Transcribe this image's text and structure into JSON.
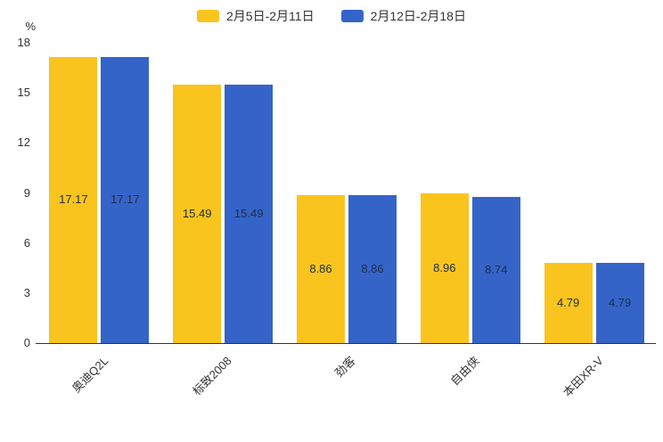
{
  "chart_data": {
    "type": "bar",
    "title": "",
    "xlabel": "",
    "ylabel": "%",
    "categories": [
      "奥迪Q2L",
      "标致2008",
      "劲客",
      "自由侠",
      "本田XR-V"
    ],
    "series": [
      {
        "name": "2月5日-2月11日",
        "color": "#FAC41E",
        "values": [
          17.17,
          15.49,
          8.86,
          8.96,
          4.79
        ]
      },
      {
        "name": "2月12日-2月18日",
        "color": "#3564C8",
        "values": [
          17.17,
          15.49,
          8.86,
          8.74,
          4.79
        ]
      }
    ],
    "ylim": [
      0,
      18
    ],
    "ytick_step": 3,
    "grid": false,
    "legend_position": "top",
    "value_label_position": "inside-center",
    "value_label_color": "#1F2D49",
    "axis_color": "#333333",
    "background_color": "#FFFFFF"
  }
}
